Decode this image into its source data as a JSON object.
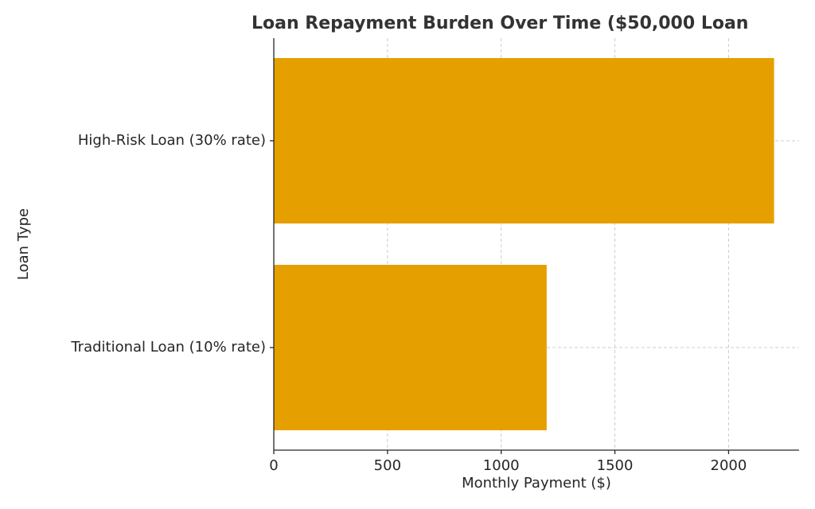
{
  "chart_data": {
    "type": "barh",
    "title": "Loan Repayment Burden Over Time ($50,000 Loan",
    "x_label": "Monthly Payment ($)",
    "y_label": "Loan Type",
    "categories": [
      "Traditional Loan (10% rate)",
      "High-Risk Loan (30% rate)"
    ],
    "values": [
      1200,
      2200
    ],
    "color": "#e5a000",
    "xlim": [
      0,
      2310
    ],
    "xticks": [
      0,
      500,
      1000,
      1500,
      2000
    ],
    "grid": true
  }
}
